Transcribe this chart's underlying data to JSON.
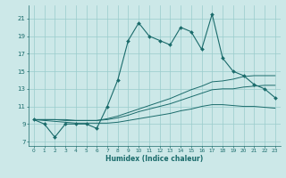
{
  "xlabel": "Humidex (Indice chaleur)",
  "bg_color": "#cce8e8",
  "line_color": "#1a6b6b",
  "grid_color": "#99cccc",
  "x_values": [
    0,
    1,
    2,
    3,
    4,
    5,
    6,
    7,
    8,
    9,
    10,
    11,
    12,
    13,
    14,
    15,
    16,
    17,
    18,
    19,
    20,
    21,
    22,
    23
  ],
  "y_main": [
    9.5,
    9.0,
    7.5,
    9.0,
    9.0,
    9.0,
    8.5,
    11.0,
    14.0,
    18.5,
    20.5,
    19.0,
    18.5,
    18.0,
    20.0,
    19.5,
    17.5,
    21.5,
    16.5,
    15.0,
    14.5,
    13.5,
    13.0,
    12.0
  ],
  "y_line1": [
    9.5,
    9.4,
    9.3,
    9.2,
    9.1,
    9.1,
    9.1,
    9.1,
    9.2,
    9.4,
    9.6,
    9.8,
    10.0,
    10.2,
    10.5,
    10.7,
    11.0,
    11.2,
    11.2,
    11.1,
    11.0,
    11.0,
    10.9,
    10.8
  ],
  "y_line2": [
    9.5,
    9.5,
    9.5,
    9.4,
    9.4,
    9.4,
    9.4,
    9.5,
    9.7,
    10.0,
    10.4,
    10.7,
    11.0,
    11.3,
    11.7,
    12.1,
    12.5,
    12.9,
    13.0,
    13.0,
    13.2,
    13.3,
    13.4,
    13.4
  ],
  "y_line3": [
    9.5,
    9.5,
    9.5,
    9.5,
    9.4,
    9.4,
    9.4,
    9.6,
    9.9,
    10.3,
    10.7,
    11.1,
    11.5,
    11.9,
    12.4,
    12.9,
    13.3,
    13.8,
    13.9,
    14.1,
    14.4,
    14.5,
    14.5,
    14.5
  ],
  "ylim": [
    6.5,
    22.5
  ],
  "xlim": [
    -0.5,
    23.5
  ],
  "yticks": [
    7,
    9,
    11,
    13,
    15,
    17,
    19,
    21
  ],
  "xticks": [
    0,
    1,
    2,
    3,
    4,
    5,
    6,
    7,
    8,
    9,
    10,
    11,
    12,
    13,
    14,
    15,
    16,
    17,
    18,
    19,
    20,
    21,
    22,
    23
  ]
}
